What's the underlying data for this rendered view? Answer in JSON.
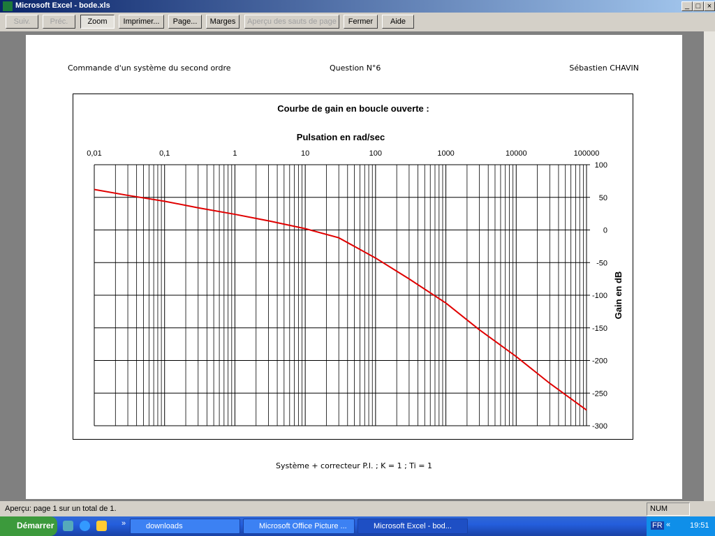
{
  "window": {
    "title": "Microsoft Excel - bode.xls"
  },
  "toolbar": {
    "buttons": [
      "Suiv.",
      "Préc.",
      "Zoom",
      "Imprimer...",
      "Page...",
      "Marges",
      "Aperçu des sauts de page",
      "Fermer",
      "Aide"
    ]
  },
  "page": {
    "header": {
      "left": "Commande d'un système du second ordre",
      "center": "Question N°6",
      "right": "Sébastien CHAVIN"
    },
    "footer": "Système + correcteur P.I. ; K = 1 ; Ti = 1"
  },
  "chart_data": {
    "type": "line",
    "title": "Courbe de gain en boucle ouverte :",
    "x_label": "Pulsation en rad/sec",
    "y_label": "Gain en dB",
    "xscale": "log",
    "grid": true,
    "color": "#e00000",
    "x": [
      0.01,
      0.03,
      0.1,
      0.3,
      1,
      3,
      10,
      30,
      100,
      300,
      1000,
      3000,
      10000,
      30000,
      100000
    ],
    "values": [
      62,
      53,
      44,
      34,
      24,
      14,
      2,
      -12,
      -43,
      -75,
      -112,
      -153,
      -194,
      -235,
      -276
    ],
    "xlim": [
      0.01,
      100000
    ],
    "xticks": [
      {
        "value": 0.01,
        "label": "0,01"
      },
      {
        "value": 0.1,
        "label": "0,1"
      },
      1,
      10,
      100,
      1000,
      10000,
      100000
    ],
    "ylim": [
      -300,
      100
    ],
    "yticks": [
      -300,
      -250,
      -200,
      -150,
      -100,
      -50,
      0,
      50,
      100
    ]
  },
  "status_bar": {
    "message": "Aperçu: page 1 sur un total de 1.",
    "indicator": "NUM"
  },
  "taskbar": {
    "start": "Démarrer",
    "tasks": [
      "downloads",
      "Microsoft Office Picture ...",
      "Microsoft Excel - bod..."
    ],
    "language": "FR",
    "clock": "19:51"
  }
}
